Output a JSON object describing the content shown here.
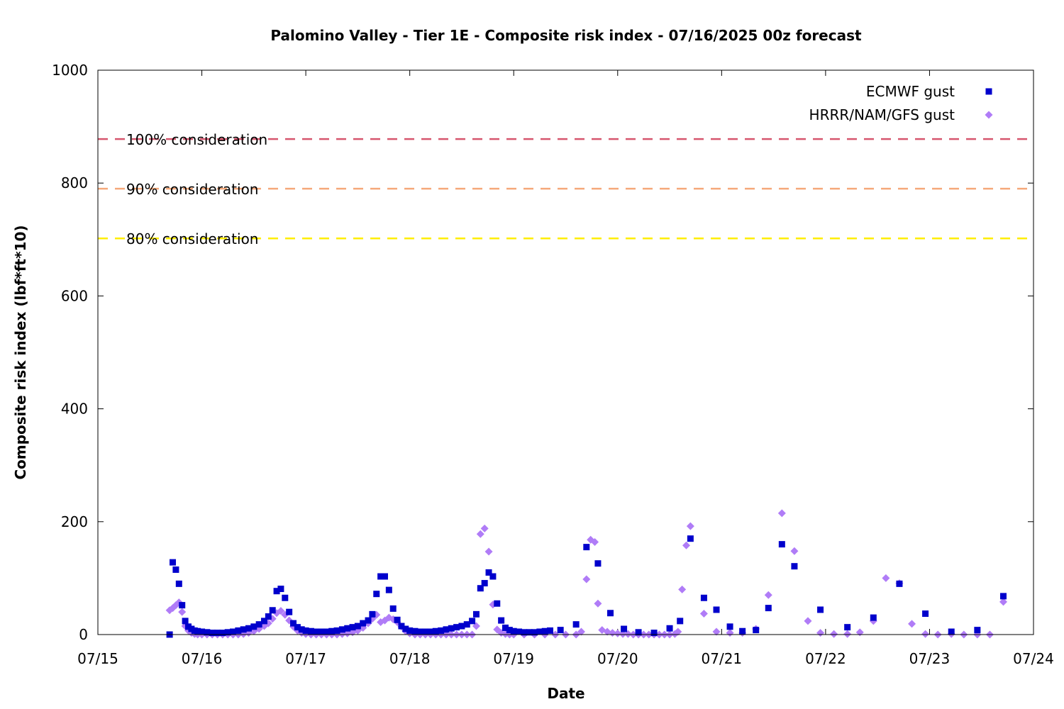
{
  "chart_data": {
    "type": "scatter",
    "title": "Palomino Valley - Tier 1E - Composite risk index - 07/16/2025 00z forecast",
    "xlabel": "Date",
    "ylabel": "Composite risk index (lbf*ft*10)",
    "x_unit": "days after 07/15 00z",
    "xlim": [
      0,
      9
    ],
    "ylim": [
      0,
      1000
    ],
    "x_ticks": [
      {
        "value": 0,
        "label": "07/15"
      },
      {
        "value": 1,
        "label": "07/16"
      },
      {
        "value": 2,
        "label": "07/17"
      },
      {
        "value": 3,
        "label": "07/18"
      },
      {
        "value": 4,
        "label": "07/19"
      },
      {
        "value": 5,
        "label": "07/20"
      },
      {
        "value": 6,
        "label": "07/21"
      },
      {
        "value": 7,
        "label": "07/22"
      },
      {
        "value": 8,
        "label": "07/23"
      },
      {
        "value": 9,
        "label": "07/24"
      }
    ],
    "y_ticks": [
      {
        "value": 0,
        "label": "0"
      },
      {
        "value": 200,
        "label": "200"
      },
      {
        "value": 400,
        "label": "400"
      },
      {
        "value": 600,
        "label": "600"
      },
      {
        "value": 800,
        "label": "800"
      },
      {
        "value": 1000,
        "label": "1000"
      }
    ],
    "legend_position": "top-right",
    "grid": false,
    "thresholds": [
      {
        "label": "100% consideration",
        "value": 878,
        "color": "#d6566e"
      },
      {
        "label": "90% consideration",
        "value": 790,
        "color": "#f5a97b"
      },
      {
        "label": "80% consideration",
        "value": 702,
        "color": "#ffee00"
      }
    ],
    "series": [
      {
        "name": "ECMWF gust",
        "marker": "square",
        "color": "#0000cc",
        "points": [
          [
            0.69,
            0
          ],
          [
            0.72,
            128
          ],
          [
            0.75,
            115
          ],
          [
            0.78,
            90
          ],
          [
            0.81,
            52
          ],
          [
            0.84,
            24
          ],
          [
            0.87,
            14
          ],
          [
            0.9,
            10
          ],
          [
            0.93,
            7
          ],
          [
            0.96,
            6
          ],
          [
            1.0,
            5
          ],
          [
            1.05,
            4
          ],
          [
            1.1,
            3
          ],
          [
            1.15,
            3
          ],
          [
            1.2,
            3
          ],
          [
            1.25,
            4
          ],
          [
            1.3,
            5
          ],
          [
            1.35,
            7
          ],
          [
            1.4,
            9
          ],
          [
            1.45,
            11
          ],
          [
            1.5,
            14
          ],
          [
            1.55,
            18
          ],
          [
            1.6,
            24
          ],
          [
            1.64,
            32
          ],
          [
            1.68,
            43
          ],
          [
            1.72,
            77
          ],
          [
            1.76,
            81
          ],
          [
            1.8,
            65
          ],
          [
            1.84,
            40
          ],
          [
            1.88,
            20
          ],
          [
            1.92,
            13
          ],
          [
            1.96,
            9
          ],
          [
            2.0,
            7
          ],
          [
            2.05,
            6
          ],
          [
            2.1,
            5
          ],
          [
            2.15,
            5
          ],
          [
            2.2,
            5
          ],
          [
            2.25,
            6
          ],
          [
            2.3,
            7
          ],
          [
            2.35,
            9
          ],
          [
            2.4,
            11
          ],
          [
            2.45,
            13
          ],
          [
            2.5,
            15
          ],
          [
            2.55,
            20
          ],
          [
            2.6,
            25
          ],
          [
            2.64,
            36
          ],
          [
            2.68,
            72
          ],
          [
            2.72,
            103
          ],
          [
            2.76,
            103
          ],
          [
            2.8,
            79
          ],
          [
            2.84,
            46
          ],
          [
            2.88,
            26
          ],
          [
            2.92,
            15
          ],
          [
            2.96,
            10
          ],
          [
            3.0,
            7
          ],
          [
            3.05,
            6
          ],
          [
            3.1,
            5
          ],
          [
            3.15,
            5
          ],
          [
            3.2,
            5
          ],
          [
            3.25,
            6
          ],
          [
            3.3,
            7
          ],
          [
            3.35,
            9
          ],
          [
            3.4,
            11
          ],
          [
            3.45,
            13
          ],
          [
            3.5,
            15
          ],
          [
            3.55,
            18
          ],
          [
            3.6,
            24
          ],
          [
            3.64,
            36
          ],
          [
            3.68,
            82
          ],
          [
            3.72,
            91
          ],
          [
            3.76,
            110
          ],
          [
            3.8,
            103
          ],
          [
            3.84,
            55
          ],
          [
            3.88,
            25
          ],
          [
            3.92,
            12
          ],
          [
            3.96,
            8
          ],
          [
            4.0,
            6
          ],
          [
            4.05,
            5
          ],
          [
            4.1,
            4
          ],
          [
            4.15,
            4
          ],
          [
            4.2,
            4
          ],
          [
            4.25,
            5
          ],
          [
            4.3,
            6
          ],
          [
            4.35,
            7
          ],
          [
            4.45,
            8
          ],
          [
            4.6,
            18
          ],
          [
            4.7,
            155
          ],
          [
            4.81,
            126
          ],
          [
            4.93,
            38
          ],
          [
            5.06,
            10
          ],
          [
            5.2,
            4
          ],
          [
            5.35,
            3
          ],
          [
            5.5,
            11
          ],
          [
            5.6,
            24
          ],
          [
            5.7,
            170
          ],
          [
            5.83,
            65
          ],
          [
            5.95,
            44
          ],
          [
            6.08,
            14
          ],
          [
            6.2,
            6
          ],
          [
            6.33,
            8
          ],
          [
            6.45,
            47
          ],
          [
            6.58,
            160
          ],
          [
            6.7,
            121
          ],
          [
            6.95,
            44
          ],
          [
            7.21,
            13
          ],
          [
            7.46,
            30
          ],
          [
            7.71,
            90
          ],
          [
            7.96,
            37
          ],
          [
            8.21,
            5
          ],
          [
            8.46,
            8
          ],
          [
            8.71,
            68
          ]
        ]
      },
      {
        "name": "HRRR/NAM/GFS gust",
        "marker": "diamond",
        "color": "#b07cf7",
        "points": [
          [
            0.69,
            43
          ],
          [
            0.72,
            47
          ],
          [
            0.75,
            52
          ],
          [
            0.78,
            57
          ],
          [
            0.81,
            40
          ],
          [
            0.84,
            15
          ],
          [
            0.87,
            7
          ],
          [
            0.9,
            3
          ],
          [
            0.93,
            1
          ],
          [
            0.96,
            0
          ],
          [
            1.0,
            0
          ],
          [
            1.05,
            0
          ],
          [
            1.1,
            0
          ],
          [
            1.15,
            0
          ],
          [
            1.2,
            0
          ],
          [
            1.25,
            0
          ],
          [
            1.3,
            0
          ],
          [
            1.35,
            0
          ],
          [
            1.4,
            1
          ],
          [
            1.45,
            3
          ],
          [
            1.5,
            6
          ],
          [
            1.55,
            10
          ],
          [
            1.6,
            15
          ],
          [
            1.64,
            20
          ],
          [
            1.68,
            28
          ],
          [
            1.72,
            38
          ],
          [
            1.76,
            42
          ],
          [
            1.8,
            35
          ],
          [
            1.84,
            25
          ],
          [
            1.88,
            14
          ],
          [
            1.92,
            7
          ],
          [
            1.96,
            3
          ],
          [
            2.0,
            1
          ],
          [
            2.05,
            0
          ],
          [
            2.1,
            0
          ],
          [
            2.15,
            0
          ],
          [
            2.2,
            0
          ],
          [
            2.25,
            0
          ],
          [
            2.3,
            0
          ],
          [
            2.35,
            1
          ],
          [
            2.4,
            2
          ],
          [
            2.45,
            4
          ],
          [
            2.5,
            7
          ],
          [
            2.55,
            12
          ],
          [
            2.6,
            20
          ],
          [
            2.64,
            28
          ],
          [
            2.68,
            35
          ],
          [
            2.72,
            22
          ],
          [
            2.76,
            25
          ],
          [
            2.8,
            30
          ],
          [
            2.84,
            27
          ],
          [
            2.88,
            22
          ],
          [
            2.92,
            14
          ],
          [
            2.96,
            6
          ],
          [
            3.0,
            2
          ],
          [
            3.05,
            0
          ],
          [
            3.1,
            0
          ],
          [
            3.15,
            0
          ],
          [
            3.2,
            0
          ],
          [
            3.25,
            0
          ],
          [
            3.3,
            0
          ],
          [
            3.35,
            0
          ],
          [
            3.4,
            0
          ],
          [
            3.45,
            0
          ],
          [
            3.5,
            0
          ],
          [
            3.55,
            0
          ],
          [
            3.6,
            0
          ],
          [
            3.64,
            15
          ],
          [
            3.68,
            178
          ],
          [
            3.72,
            188
          ],
          [
            3.76,
            147
          ],
          [
            3.8,
            53
          ],
          [
            3.84,
            9
          ],
          [
            3.88,
            3
          ],
          [
            3.92,
            1
          ],
          [
            3.96,
            0
          ],
          [
            4.0,
            0
          ],
          [
            4.1,
            0
          ],
          [
            4.2,
            0
          ],
          [
            4.3,
            0
          ],
          [
            4.4,
            0
          ],
          [
            4.5,
            0
          ],
          [
            4.6,
            0
          ],
          [
            4.65,
            5
          ],
          [
            4.7,
            98
          ],
          [
            4.74,
            168
          ],
          [
            4.78,
            164
          ],
          [
            4.81,
            55
          ],
          [
            4.85,
            8
          ],
          [
            4.9,
            5
          ],
          [
            4.95,
            3
          ],
          [
            5.0,
            2
          ],
          [
            5.05,
            1
          ],
          [
            5.1,
            1
          ],
          [
            5.15,
            0
          ],
          [
            5.2,
            0
          ],
          [
            5.25,
            0
          ],
          [
            5.3,
            0
          ],
          [
            5.35,
            0
          ],
          [
            5.4,
            0
          ],
          [
            5.45,
            0
          ],
          [
            5.5,
            0
          ],
          [
            5.55,
            1
          ],
          [
            5.58,
            5
          ],
          [
            5.62,
            80
          ],
          [
            5.66,
            158
          ],
          [
            5.7,
            192
          ],
          [
            5.83,
            37
          ],
          [
            5.95,
            5
          ],
          [
            6.08,
            3
          ],
          [
            6.2,
            3
          ],
          [
            6.33,
            10
          ],
          [
            6.45,
            70
          ],
          [
            6.58,
            215
          ],
          [
            6.7,
            148
          ],
          [
            6.83,
            24
          ],
          [
            6.95,
            3
          ],
          [
            7.08,
            1
          ],
          [
            7.21,
            1
          ],
          [
            7.33,
            4
          ],
          [
            7.46,
            24
          ],
          [
            7.58,
            100
          ],
          [
            7.71,
            91
          ],
          [
            7.83,
            19
          ],
          [
            7.96,
            1
          ],
          [
            8.08,
            0
          ],
          [
            8.21,
            1
          ],
          [
            8.33,
            0
          ],
          [
            8.46,
            0
          ],
          [
            8.58,
            0
          ],
          [
            8.71,
            58
          ]
        ]
      }
    ]
  }
}
